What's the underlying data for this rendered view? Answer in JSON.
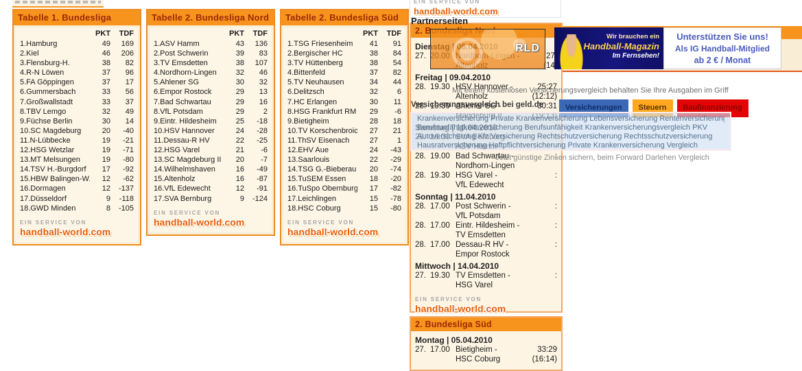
{
  "brand": {
    "service_label": "ein service von",
    "site": "handball-world.com"
  },
  "partner_label": "Partnerseiten",
  "colors": {
    "accent_orange": "#F7941E",
    "header_text": "#9C2B00",
    "panel_cream": "#FDF4E3",
    "tab_blue": "#3A68B4",
    "tab_orange": "#FFA81F",
    "tab_red": "#E20505",
    "support_blue": "#4A5BBE",
    "banner_navy": "#16167E"
  },
  "tables": [
    {
      "title": "Tabelle 1. Bundesliga",
      "columns": [
        "PKT",
        "TDF"
      ],
      "rows": [
        {
          "rank": 1,
          "team": "Hamburg",
          "pkt": 49,
          "tdf": 169
        },
        {
          "rank": 2,
          "team": "Kiel",
          "pkt": 46,
          "tdf": 206
        },
        {
          "rank": 3,
          "team": "Flensburg-H.",
          "pkt": 38,
          "tdf": 82
        },
        {
          "rank": 4,
          "team": "R-N Löwen",
          "pkt": 37,
          "tdf": 96
        },
        {
          "rank": 5,
          "team": "FA Göppingen",
          "pkt": 37,
          "tdf": 17
        },
        {
          "rank": 6,
          "team": "Gummersbach",
          "pkt": 33,
          "tdf": 56
        },
        {
          "rank": 7,
          "team": "Großwallstadt",
          "pkt": 33,
          "tdf": 37
        },
        {
          "rank": 8,
          "team": "TBV Lemgo",
          "pkt": 32,
          "tdf": 49
        },
        {
          "rank": 9,
          "team": "Füchse Berlin",
          "pkt": 30,
          "tdf": 14
        },
        {
          "rank": 10,
          "team": "SC Magdeburg",
          "pkt": 20,
          "tdf": -40
        },
        {
          "rank": 11,
          "team": "N-Lübbecke",
          "pkt": 19,
          "tdf": -21
        },
        {
          "rank": 12,
          "team": "HSG Wetzlar",
          "pkt": 19,
          "tdf": -71
        },
        {
          "rank": 13,
          "team": "MT Melsungen",
          "pkt": 19,
          "tdf": -80
        },
        {
          "rank": 14,
          "team": "TSV H.-Burgdorf",
          "pkt": 17,
          "tdf": -92
        },
        {
          "rank": 15,
          "team": "HBW Balingen-W.",
          "pkt": 12,
          "tdf": -62
        },
        {
          "rank": 16,
          "team": "Dormagen",
          "pkt": 12,
          "tdf": -137
        },
        {
          "rank": 17,
          "team": "Düsseldorf",
          "pkt": 9,
          "tdf": -118
        },
        {
          "rank": 18,
          "team": "GWD Minden",
          "pkt": 8,
          "tdf": -105
        }
      ]
    },
    {
      "title": "Tabelle 2. Bundesliga Nord",
      "columns": [
        "PKT",
        "TDF"
      ],
      "rows": [
        {
          "rank": 1,
          "team": "ASV Hamm",
          "pkt": 43,
          "tdf": 136
        },
        {
          "rank": 2,
          "team": "Post Schwerin",
          "pkt": 39,
          "tdf": 83
        },
        {
          "rank": 3,
          "team": "TV Emsdetten",
          "pkt": 38,
          "tdf": 107
        },
        {
          "rank": 4,
          "team": "Nordhorn-Lingen",
          "pkt": 32,
          "tdf": 46
        },
        {
          "rank": 5,
          "team": "Ahlener SG",
          "pkt": 30,
          "tdf": 32
        },
        {
          "rank": 6,
          "team": "Empor Rostock",
          "pkt": 29,
          "tdf": 13
        },
        {
          "rank": 7,
          "team": "Bad Schwartau",
          "pkt": 29,
          "tdf": 16
        },
        {
          "rank": 8,
          "team": "VfL Potsdam",
          "pkt": 29,
          "tdf": 2
        },
        {
          "rank": 9,
          "team": "Eintr. Hildesheim",
          "pkt": 25,
          "tdf": -18
        },
        {
          "rank": 10,
          "team": "HSV Hannover",
          "pkt": 24,
          "tdf": -28
        },
        {
          "rank": 11,
          "team": "Dessau-R HV",
          "pkt": 22,
          "tdf": -25
        },
        {
          "rank": 12,
          "team": "HSG Varel",
          "pkt": 21,
          "tdf": -6
        },
        {
          "rank": 13,
          "team": "SC Magdeburg II",
          "pkt": 20,
          "tdf": -7
        },
        {
          "rank": 14,
          "team": "Wilhelmshaven",
          "pkt": 16,
          "tdf": -49
        },
        {
          "rank": 15,
          "team": "Altenholz",
          "pkt": 16,
          "tdf": -87
        },
        {
          "rank": 16,
          "team": "VfL Edewecht",
          "pkt": 12,
          "tdf": -91
        },
        {
          "rank": 17,
          "team": "SVA Bernburg",
          "pkt": 9,
          "tdf": -124
        }
      ]
    },
    {
      "title": "Tabelle 2. Bundesliga Süd",
      "columns": [
        "PKT",
        "TDF"
      ],
      "rows": [
        {
          "rank": 1,
          "team": "TSG Friesenheim",
          "pkt": 41,
          "tdf": 91
        },
        {
          "rank": 2,
          "team": "Bergischer HC",
          "pkt": 38,
          "tdf": 84
        },
        {
          "rank": 3,
          "team": "TV Hüttenberg",
          "pkt": 38,
          "tdf": 54
        },
        {
          "rank": 4,
          "team": "Bittenfeld",
          "pkt": 37,
          "tdf": 82
        },
        {
          "rank": 5,
          "team": "TV Neuhausen",
          "pkt": 34,
          "tdf": 44
        },
        {
          "rank": 6,
          "team": "Delitzsch",
          "pkt": 32,
          "tdf": 6
        },
        {
          "rank": 7,
          "team": "HC Erlangen",
          "pkt": 30,
          "tdf": 11
        },
        {
          "rank": 8,
          "team": "HSG Frankfurt RM",
          "pkt": 29,
          "tdf": -6
        },
        {
          "rank": 9,
          "team": "Bietigheim",
          "pkt": 28,
          "tdf": 18
        },
        {
          "rank": 10,
          "team": "TV Korschenbroich",
          "pkt": 27,
          "tdf": 21
        },
        {
          "rank": 11,
          "team": "ThSV Eisenach",
          "pkt": 27,
          "tdf": 1
        },
        {
          "rank": 12,
          "team": "EHV Aue",
          "pkt": 24,
          "tdf": -43
        },
        {
          "rank": 13,
          "team": "Saarlouis",
          "pkt": 22,
          "tdf": -29
        },
        {
          "rank": 14,
          "team": "TSG G.-Bieberau",
          "pkt": 20,
          "tdf": -74
        },
        {
          "rank": 15,
          "team": "TuSEM Essen",
          "pkt": 18,
          "tdf": -20
        },
        {
          "rank": 16,
          "team": "TuSpo Obernburg",
          "pkt": 17,
          "tdf": -82
        },
        {
          "rank": 17,
          "team": "Leichlingen",
          "pkt": 15,
          "tdf": -78
        },
        {
          "rank": 18,
          "team": "HSC Coburg",
          "pkt": 15,
          "tdf": -80
        }
      ]
    }
  ],
  "schedule_nord": {
    "title": "2. Bundesliga Nord",
    "groups": [
      {
        "day": "Dienstag | 06.04.2010",
        "matches": [
          {
            "md": "27.",
            "time": "20.00",
            "home": "Nordhorn-Lingen -",
            "away": "Altenholz",
            "score": "27:",
            "half": "(14:"
          }
        ]
      },
      {
        "day": "Freitag | 09.04.2010",
        "matches": [
          {
            "md": "28.",
            "time": "19.30",
            "home": "HSV Hannover -",
            "away": "Altenholz",
            "score": "25:27",
            "half": "(12:12)"
          },
          {
            "md": "28.",
            "time": "19.30",
            "home": "Ahlener SG -",
            "away": "Magdeburg II",
            "score": "30:31",
            "half": "(19:13)"
          }
        ]
      },
      {
        "day": "Samstag | 10.04.2010",
        "matches": [
          {
            "md": "28.",
            "time": "16.30",
            "home": "SVA Bernburg -",
            "away": "ASV Hamm",
            "score": ":",
            "half": ""
          },
          {
            "md": "28.",
            "time": "19.00",
            "home": "Bad Schwartau -",
            "away": "Nordhorn-Lingen",
            "score": ":",
            "half": ""
          },
          {
            "md": "28.",
            "time": "19.30",
            "home": "HSG Varel -",
            "away": "VfL Edewecht",
            "score": ":",
            "half": ""
          }
        ]
      },
      {
        "day": "Sonntag | 11.04.2010",
        "matches": [
          {
            "md": "28.",
            "time": "17.00",
            "home": "Post Schwerin -",
            "away": "VfL Potsdam",
            "score": ":",
            "half": ""
          },
          {
            "md": "28.",
            "time": "17.00",
            "home": "Eintr. Hildesheim -",
            "away": "TV Emsdetten",
            "score": ":",
            "half": ""
          },
          {
            "md": "28.",
            "time": "17.00",
            "home": "Dessau-R HV -",
            "away": "Empor Rostock",
            "score": ":",
            "half": ""
          }
        ]
      },
      {
        "day": "Mittwoch | 14.04.2010",
        "matches": [
          {
            "md": "27.",
            "time": "19.30",
            "home": "TV Emsdetten -",
            "away": "HSG Varel",
            "score": ":",
            "half": ""
          }
        ]
      }
    ]
  },
  "schedule_sued": {
    "title": "2. Bundesliga Süd",
    "groups": [
      {
        "day": "Montag | 05.04.2010",
        "matches": [
          {
            "md": "27.",
            "time": "17.00",
            "home": "Bietigheim -",
            "away": "HSC Coburg",
            "score": "33:29",
            "half": "(16:14)"
          }
        ]
      }
    ]
  },
  "watermark": {
    "text": "RLD"
  },
  "banner": {
    "line1": "Wir brauchen ein",
    "line2": "Handball-Magazin",
    "line3": "Im Fernsehen!"
  },
  "support": {
    "line1": "Unterstützen Sie uns!",
    "line2": "Als IG Handball-Mitglied",
    "line3": "ab 2 € / Monat"
  },
  "ad": {
    "intro": "Mit einem kostenlosen Versicherungsvergleich behalten Sie Ihre Ausgaben im Griff",
    "title": "Versicherungsvergleich bei geld.de",
    "tabs": [
      "Versicherungen",
      "Steuern",
      "Baufinanzierung"
    ],
    "links": [
      "Krankenversicherung Private Krankenversicherung Lebensversicherung Rentenversicherung",
      "Berufsunfähigkeitsversicherung Berufsunfähigkeit Krankenversicherungsvergleich PKV",
      "Autoversicherung Kfz Versicherung Rechtschutzversicherung Rechtsschutzversicherung",
      "Hausratversicherung Haftpflichtversicherung Private Krankenversicherung Vergleich"
    ],
    "footer_link": "Jetzt günstige Zinsen sichern, beim Forward Darlehen Vergleich"
  }
}
